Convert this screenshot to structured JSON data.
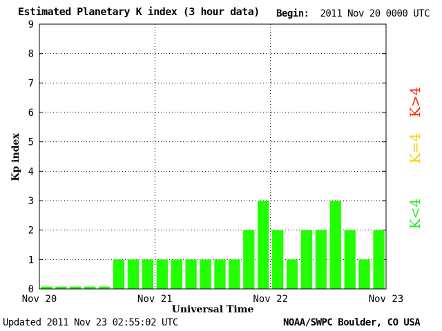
{
  "header": {
    "title": "Estimated Planetary K index (3 hour data)",
    "begin_label": "Begin:",
    "begin_value": "2011 Nov 20 0000 UTC"
  },
  "footer": {
    "updated_label": "Updated",
    "updated_value": "2011 Nov 23 02:55:02 UTC",
    "source": "NOAA/SWPC Boulder, CO USA"
  },
  "legend": [
    {
      "label": "K<4",
      "color": "#22ee22"
    },
    {
      "label": "K=4",
      "color": "#ffcc00"
    },
    {
      "label": "K>4",
      "color": "#ff2200"
    }
  ],
  "chart_data": {
    "type": "bar",
    "title": "Estimated Planetary K index (3 hour data)",
    "xlabel": "Universal Time",
    "ylabel": "Kp index",
    "ylim": [
      0,
      9
    ],
    "yticks": [
      0,
      1,
      2,
      3,
      4,
      5,
      6,
      7,
      8,
      9
    ],
    "xticks": [
      "Nov 20",
      "Nov 21",
      "Nov 22",
      "Nov 23"
    ],
    "grid": true,
    "bar_color": "#22ff00",
    "values": [
      0,
      0,
      0,
      0,
      0,
      1,
      1,
      1,
      1,
      1,
      1,
      1,
      1,
      1,
      2,
      3,
      2,
      1,
      2,
      2,
      3,
      2,
      1,
      2
    ]
  }
}
